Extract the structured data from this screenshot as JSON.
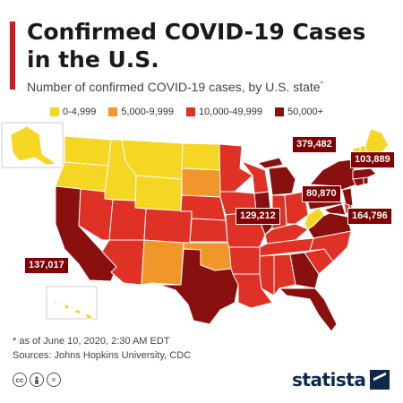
{
  "header": {
    "title_line1": "Confirmed COVID-19 Cases",
    "title_line2": "in the U.S.",
    "subtitle": "Number of confirmed COVID-19 cases, by U.S. state",
    "subtitle_mark": "*"
  },
  "legend": [
    {
      "label": "0-4,999",
      "color": "#f5d623"
    },
    {
      "label": "5,000-9,999",
      "color": "#f0962a"
    },
    {
      "label": "10,000-49,999",
      "color": "#e03127"
    },
    {
      "label": "50,000+",
      "color": "#8a0f0f"
    }
  ],
  "callouts": {
    "new_york": "379,482",
    "massachusetts": "103,889",
    "pennsylvania": "80,870",
    "illinois": "129,212",
    "new_jersey": "164,796",
    "california": "137,017"
  },
  "footer": {
    "note": "* as of June 10, 2020, 2:30 AM EDT",
    "sources": "Sources: Johns Hopkins University, CDC",
    "brand": "statista"
  },
  "icons": [
    "cc-icon",
    "person-icon",
    "equals-icon",
    "statista-logo-icon"
  ]
}
